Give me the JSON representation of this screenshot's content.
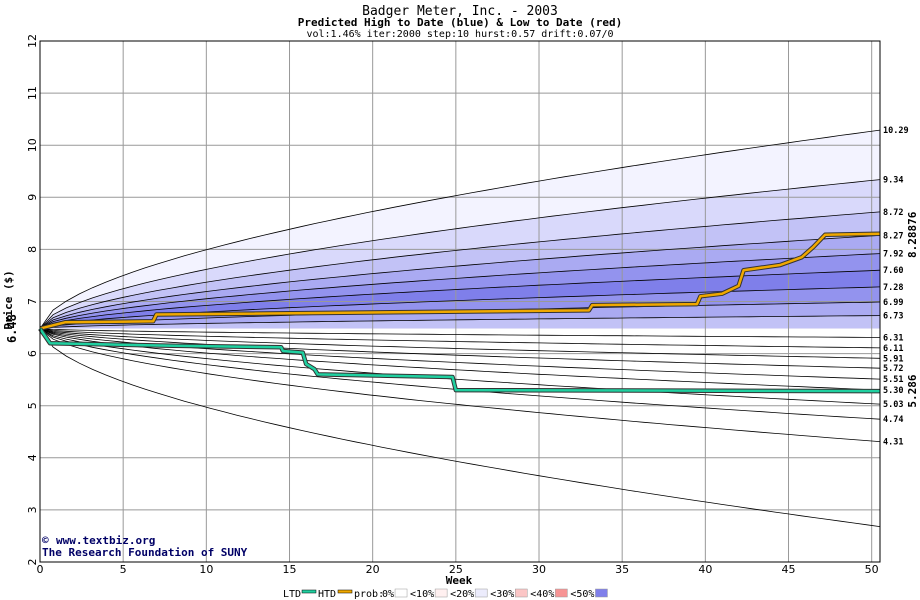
{
  "chart_data": {
    "type": "line",
    "title": "Badger Meter, Inc. - 2003",
    "subtitle": "Predicted High to Date (blue) &  Low to Date (red)",
    "params": "vol:1.46% iter:2000 step:10 hurst:0.57 drift:0.07/0",
    "xlabel": "Week",
    "ylabel": "Price ($)",
    "xlim": [
      0,
      50.5
    ],
    "ylim": [
      2,
      12
    ],
    "x_ticks": [
      0,
      5,
      10,
      15,
      20,
      25,
      30,
      35,
      40,
      45,
      50
    ],
    "y_ticks": [
      2,
      3,
      4,
      5,
      6,
      7,
      8,
      9,
      10,
      11,
      12
    ],
    "start_price": "6.48",
    "start_value": 6.48,
    "high_final_label": "8.28876",
    "low_final_label": "5.286",
    "grid": true,
    "upper_bands": [
      {
        "label": "10.29",
        "end": 10.29,
        "color": "#f3f3ff"
      },
      {
        "label": "9.34",
        "end": 9.34,
        "color": "#d9d9fb"
      },
      {
        "label": "8.72",
        "end": 8.72,
        "color": "#c2c2f6"
      },
      {
        "label": "8.27",
        "end": 8.27,
        "color": "#aaaaf2"
      },
      {
        "label": "7.92",
        "end": 7.92,
        "color": "#9393ee"
      },
      {
        "label": "7.60",
        "end": 7.6,
        "color": "#7f7fea"
      },
      {
        "label": "7.28",
        "end": 7.28,
        "color": "#9393ee"
      },
      {
        "label": "6.99",
        "end": 6.99,
        "color": "#aaaaf2"
      },
      {
        "label": "6.73",
        "end": 6.73,
        "color": "#c2c2f6"
      },
      {
        "label": "6.31",
        "end": 6.31,
        "color": "#ececfc"
      }
    ],
    "lower_bands": [
      {
        "label": "6.11",
        "end": 6.11,
        "color": "#fde0e0"
      },
      {
        "label": "5.91",
        "end": 5.91,
        "color": "#fbc6c6"
      },
      {
        "label": "5.72",
        "end": 5.72,
        "color": "#f9aaaa"
      },
      {
        "label": "5.51",
        "end": 5.51,
        "color": "#f79494"
      },
      {
        "label": "5.30",
        "end": 5.3,
        "color": "#f9aaaa"
      },
      {
        "label": "5.03",
        "end": 5.03,
        "color": "#fbc6c6"
      },
      {
        "label": "4.74",
        "end": 4.74,
        "color": "#fde0e0"
      },
      {
        "label": "4.31",
        "end": 4.31,
        "color": "#fef0f0"
      },
      {
        "label": "",
        "end": 2.68,
        "color": "#ffffff"
      }
    ],
    "series": [
      {
        "name": "HTD",
        "color": "#f0a800",
        "x": [
          0,
          1.5,
          6.8,
          7,
          33,
          33.2,
          39.5,
          39.7,
          41,
          42,
          42.3,
          44.5,
          45.8,
          46.5,
          47.2,
          50.5
        ],
        "y": [
          6.48,
          6.6,
          6.62,
          6.75,
          6.83,
          6.93,
          6.95,
          7.1,
          7.15,
          7.3,
          7.6,
          7.7,
          7.85,
          8.05,
          8.28,
          8.3
        ]
      },
      {
        "name": "LTD",
        "color": "#20d0a0",
        "x": [
          0,
          0.6,
          8,
          14.5,
          14.6,
          15.8,
          16,
          16.5,
          16.7,
          24.8,
          25,
          50.5
        ],
        "y": [
          6.48,
          6.2,
          6.15,
          6.12,
          6.05,
          6.02,
          5.8,
          5.7,
          5.6,
          5.55,
          5.3,
          5.28
        ]
      }
    ]
  },
  "credits": {
    "site": "www.textbiz.org",
    "org": "The Research Foundation of SUNY",
    "copyright_symbol": "©"
  },
  "legend": {
    "ltd": "LTD",
    "htd": "HTD",
    "prob_prefix": "prob:",
    "items": [
      {
        "label": "0%",
        "color": "#ffffff"
      },
      {
        "label": "<10%",
        "color": "#fff0f0"
      },
      {
        "label": "<20%",
        "color": "#ececfc"
      },
      {
        "label": "<30%",
        "color": "#fbc6c6"
      },
      {
        "label": "<40%",
        "color": "#f79494"
      },
      {
        "label": "<50%",
        "color": "#7f7fea"
      }
    ],
    "colors": {
      "blue_label": "#cc8800",
      "red_label": "#009966"
    }
  }
}
